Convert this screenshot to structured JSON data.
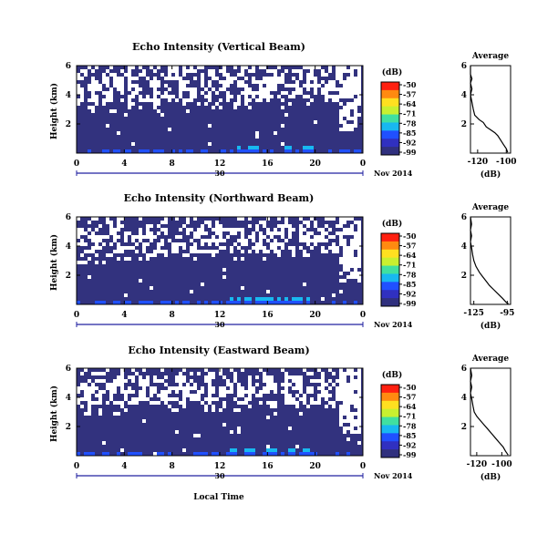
{
  "figure": {
    "x_axis_label": "Local Time",
    "date_label_month": "Nov",
    "date_label_year": "2014",
    "date_label_day": "30",
    "profile_title": "Average",
    "profile_xlabel": "(dB)",
    "colorbar_unit": "(dB)"
  },
  "colormap": {
    "ticks": [
      "-50",
      "-57",
      "-64",
      "-71",
      "-78",
      "-85",
      "-92",
      "-99"
    ],
    "colors": [
      "#ff2010",
      "#ff8a10",
      "#ffe020",
      "#c8f030",
      "#40e0a0",
      "#18b8f0",
      "#2050ff",
      "#3030c0",
      "#30307e"
    ],
    "background": "#32327e",
    "no_data": "#ffffff"
  },
  "chart_data": [
    {
      "type": "heatmap",
      "title": "Echo Intensity (Vertical Beam)",
      "xlabel": "",
      "ylabel": "Height (km)",
      "x_ticks": [
        "0",
        "4",
        "8",
        "12",
        "16",
        "20",
        "0"
      ],
      "y_ticks": [
        "6",
        "4",
        "2"
      ],
      "xlim_hours": [
        0,
        24
      ],
      "ylim_km": [
        0,
        6
      ],
      "colorbar_range_db": [
        -99,
        -50
      ],
      "average_profile": {
        "x_ticks": [
          "-120",
          "-100"
        ],
        "xlim": [
          -125,
          -97
        ],
        "points": [
          [
            -125,
            6
          ],
          [
            -125,
            5.4
          ],
          [
            -124,
            5.1
          ],
          [
            -125,
            4.8
          ],
          [
            -124,
            4.4
          ],
          [
            -125,
            4.0
          ],
          [
            -124,
            3.5
          ],
          [
            -123,
            3.0
          ],
          [
            -122,
            2.6
          ],
          [
            -119,
            2.3
          ],
          [
            -116,
            2.1
          ],
          [
            -114,
            1.8
          ],
          [
            -111,
            1.6
          ],
          [
            -108,
            1.4
          ],
          [
            -106,
            1.2
          ],
          [
            -104,
            0.9
          ],
          [
            -102,
            0.6
          ],
          [
            -100,
            0.3
          ],
          [
            -99,
            0.05
          ]
        ]
      }
    },
    {
      "type": "heatmap",
      "title": "Echo Intensity (Northward Beam)",
      "xlabel": "",
      "ylabel": "Height (km)",
      "x_ticks": [
        "0",
        "4",
        "8",
        "12",
        "16",
        "20",
        "0"
      ],
      "y_ticks": [
        "6",
        "4",
        "2"
      ],
      "xlim_hours": [
        0,
        24
      ],
      "ylim_km": [
        0,
        6
      ],
      "colorbar_range_db": [
        -99,
        -50
      ],
      "average_profile": {
        "x_ticks": [
          "-125",
          "-95"
        ],
        "xlim": [
          -128,
          -92
        ],
        "points": [
          [
            -128,
            6
          ],
          [
            -127,
            5.5
          ],
          [
            -128,
            5.1
          ],
          [
            -127,
            4.7
          ],
          [
            -128,
            4.3
          ],
          [
            -127,
            3.9
          ],
          [
            -126,
            3.4
          ],
          [
            -125,
            3.0
          ],
          [
            -123,
            2.6
          ],
          [
            -120,
            2.2
          ],
          [
            -117,
            1.9
          ],
          [
            -114,
            1.6
          ],
          [
            -111,
            1.3
          ],
          [
            -107,
            1.0
          ],
          [
            -103,
            0.7
          ],
          [
            -99,
            0.4
          ],
          [
            -96,
            0.15
          ],
          [
            -94,
            0.05
          ]
        ]
      }
    },
    {
      "type": "heatmap",
      "title": "Echo Intensity (Eastward Beam)",
      "xlabel": "Local Time",
      "ylabel": "Height (km)",
      "x_ticks": [
        "0",
        "4",
        "8",
        "12",
        "16",
        "20",
        "0"
      ],
      "y_ticks": [
        "6",
        "4",
        "2"
      ],
      "xlim_hours": [
        0,
        24
      ],
      "ylim_km": [
        0,
        6
      ],
      "colorbar_range_db": [
        -99,
        -50
      ],
      "average_profile": {
        "x_ticks": [
          "-120",
          "-100"
        ],
        "xlim": [
          -125,
          -93
        ],
        "points": [
          [
            -125,
            6
          ],
          [
            -124,
            5.5
          ],
          [
            -125,
            5.1
          ],
          [
            -124,
            4.7
          ],
          [
            -125,
            4.3
          ],
          [
            -124,
            3.9
          ],
          [
            -123,
            3.4
          ],
          [
            -122,
            3.0
          ],
          [
            -120,
            2.7
          ],
          [
            -117,
            2.4
          ],
          [
            -114,
            2.1
          ],
          [
            -111,
            1.8
          ],
          [
            -108,
            1.5
          ],
          [
            -105,
            1.2
          ],
          [
            -102,
            0.9
          ],
          [
            -99,
            0.6
          ],
          [
            -97,
            0.3
          ],
          [
            -95,
            0.05
          ]
        ]
      }
    }
  ]
}
